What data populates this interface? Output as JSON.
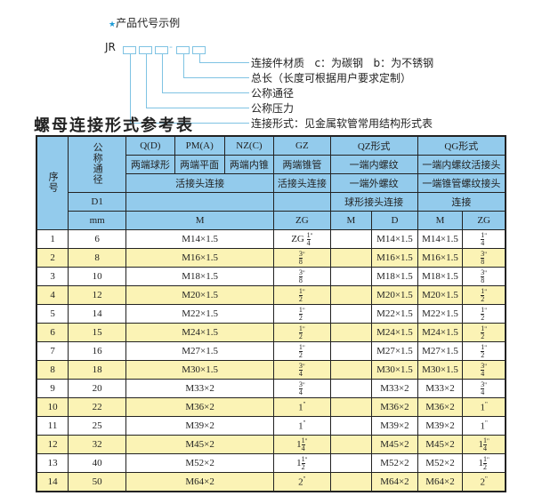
{
  "example": {
    "star_icon": "star",
    "heading": "产品代号示例",
    "code_prefix": "JR",
    "separator": "-",
    "labels": [
      "连接件材质   c：为碳钢   b：为不锈钢",
      "总长（长度可根据用户要求定制）",
      "公称通径",
      "公称压力",
      "连接形式：见金属软管常用结构形式表"
    ]
  },
  "table_title": "螺母连接形式参考表",
  "header": {
    "seq": "序号",
    "dn": "公称通径",
    "d1": "D1",
    "mm": "mm",
    "qd": "Q(D)",
    "pm": "PM(A)",
    "nz": "NZ(C)",
    "gz": "GZ",
    "qz": "QZ形式",
    "qg": "QG形式",
    "qd_desc": "两端球形",
    "pm_desc": "两端平面",
    "nz_desc": "两端内锥",
    "gz_desc": "两端锥管",
    "qz_desc1": "一端内螺纹",
    "qg_desc1": "一端内螺纹活接头",
    "huo": "活接头连接",
    "gz_conn": "活接头连接",
    "qz_desc2": "一端外螺纹",
    "qg_desc2": "一端锥管螺纹接头",
    "qz_desc3": "球形接头连接",
    "qg_desc3": "连接",
    "m": "M",
    "zg": "ZG",
    "qz_m": "M",
    "qz_d": "D",
    "qg_m": "M",
    "qg_zg": "ZG"
  },
  "rows": [
    {
      "no": "1",
      "dn": "6",
      "m": "M14×1.5",
      "zg_pre": "ZG",
      "zg_w": "",
      "zg_n": "1",
      "zg_d": "4",
      "qz_m": "",
      "qz_d": "M14×1.5",
      "qg_m": "M14×1.5",
      "qg_w": "",
      "qg_n": "1",
      "qg_d": "4"
    },
    {
      "no": "2",
      "dn": "8",
      "m": "M16×1.5",
      "zg_pre": "",
      "zg_w": "",
      "zg_n": "3",
      "zg_d": "8",
      "qz_m": "",
      "qz_d": "M16×1.5",
      "qg_m": "M16×1.5",
      "qg_w": "",
      "qg_n": "3",
      "qg_d": "8"
    },
    {
      "no": "3",
      "dn": "10",
      "m": "M18×1.5",
      "zg_pre": "",
      "zg_w": "",
      "zg_n": "3",
      "zg_d": "8",
      "qz_m": "",
      "qz_d": "M18×1.5",
      "qg_m": "M18×1.5",
      "qg_w": "",
      "qg_n": "3",
      "qg_d": "8"
    },
    {
      "no": "4",
      "dn": "12",
      "m": "M20×1.5",
      "zg_pre": "",
      "zg_w": "",
      "zg_n": "1",
      "zg_d": "2",
      "qz_m": "",
      "qz_d": "M20×1.5",
      "qg_m": "M20×1.5",
      "qg_w": "",
      "qg_n": "1",
      "qg_d": "2"
    },
    {
      "no": "5",
      "dn": "14",
      "m": "M22×1.5",
      "zg_pre": "",
      "zg_w": "",
      "zg_n": "1",
      "zg_d": "2",
      "qz_m": "",
      "qz_d": "M22×1.5",
      "qg_m": "M22×1.5",
      "qg_w": "",
      "qg_n": "1",
      "qg_d": "2"
    },
    {
      "no": "6",
      "dn": "15",
      "m": "M24×1.5",
      "zg_pre": "",
      "zg_w": "",
      "zg_n": "1",
      "zg_d": "2",
      "qz_m": "",
      "qz_d": "M24×1.5",
      "qg_m": "M24×1.5",
      "qg_w": "",
      "qg_n": "1",
      "qg_d": "2"
    },
    {
      "no": "7",
      "dn": "16",
      "m": "M27×1.5",
      "zg_pre": "",
      "zg_w": "",
      "zg_n": "1",
      "zg_d": "2",
      "qz_m": "",
      "qz_d": "M27×1.5",
      "qg_m": "M27×1.5",
      "qg_w": "",
      "qg_n": "1",
      "qg_d": "2"
    },
    {
      "no": "8",
      "dn": "18",
      "m": "M30×1.5",
      "zg_pre": "",
      "zg_w": "",
      "zg_n": "3",
      "zg_d": "4",
      "qz_m": "",
      "qz_d": "M30×1.5",
      "qg_m": "M30×1.5",
      "qg_w": "",
      "qg_n": "3",
      "qg_d": "4"
    },
    {
      "no": "9",
      "dn": "20",
      "m": "M33×2",
      "zg_pre": "",
      "zg_w": "",
      "zg_n": "3",
      "zg_d": "4",
      "qz_m": "",
      "qz_d": "M33×2",
      "qg_m": "M33×2",
      "qg_w": "",
      "qg_n": "3",
      "qg_d": "4"
    },
    {
      "no": "10",
      "dn": "22",
      "m": "M36×2",
      "zg_pre": "",
      "zg_w": "1",
      "zg_n": "",
      "zg_d": "",
      "qz_m": "",
      "qz_d": "M36×2",
      "qg_m": "M36×2",
      "qg_w": "1",
      "qg_n": "",
      "qg_d": ""
    },
    {
      "no": "11",
      "dn": "25",
      "m": "M39×2",
      "zg_pre": "",
      "zg_w": "1",
      "zg_n": "",
      "zg_d": "",
      "qz_m": "",
      "qz_d": "M39×2",
      "qg_m": "M39×2",
      "qg_w": "1",
      "qg_n": "",
      "qg_d": ""
    },
    {
      "no": "12",
      "dn": "32",
      "m": "M45×2",
      "zg_pre": "",
      "zg_w": "1",
      "zg_n": "1",
      "zg_d": "4",
      "qz_m": "",
      "qz_d": "M45×2",
      "qg_m": "M45×2",
      "qg_w": "1",
      "qg_n": "1",
      "qg_d": "4"
    },
    {
      "no": "13",
      "dn": "40",
      "m": "M52×2",
      "zg_pre": "",
      "zg_w": "1",
      "zg_n": "1",
      "zg_d": "2",
      "qz_m": "",
      "qz_d": "M52×2",
      "qg_m": "M52×2",
      "qg_w": "1",
      "qg_n": "1",
      "qg_d": "2"
    },
    {
      "no": "14",
      "dn": "50",
      "m": "M64×2",
      "zg_pre": "",
      "zg_w": "2",
      "zg_n": "",
      "zg_d": "",
      "qz_m": "",
      "qz_d": "M64×2",
      "qg_m": "M64×2",
      "qg_w": "2",
      "qg_n": "",
      "qg_d": ""
    }
  ],
  "inch_mark": "\"",
  "colors": {
    "header_bg": "#93cbec",
    "stripe_bg": "#fbf3b5",
    "line": "#7fc3e3",
    "star": "#1a9ad6"
  }
}
